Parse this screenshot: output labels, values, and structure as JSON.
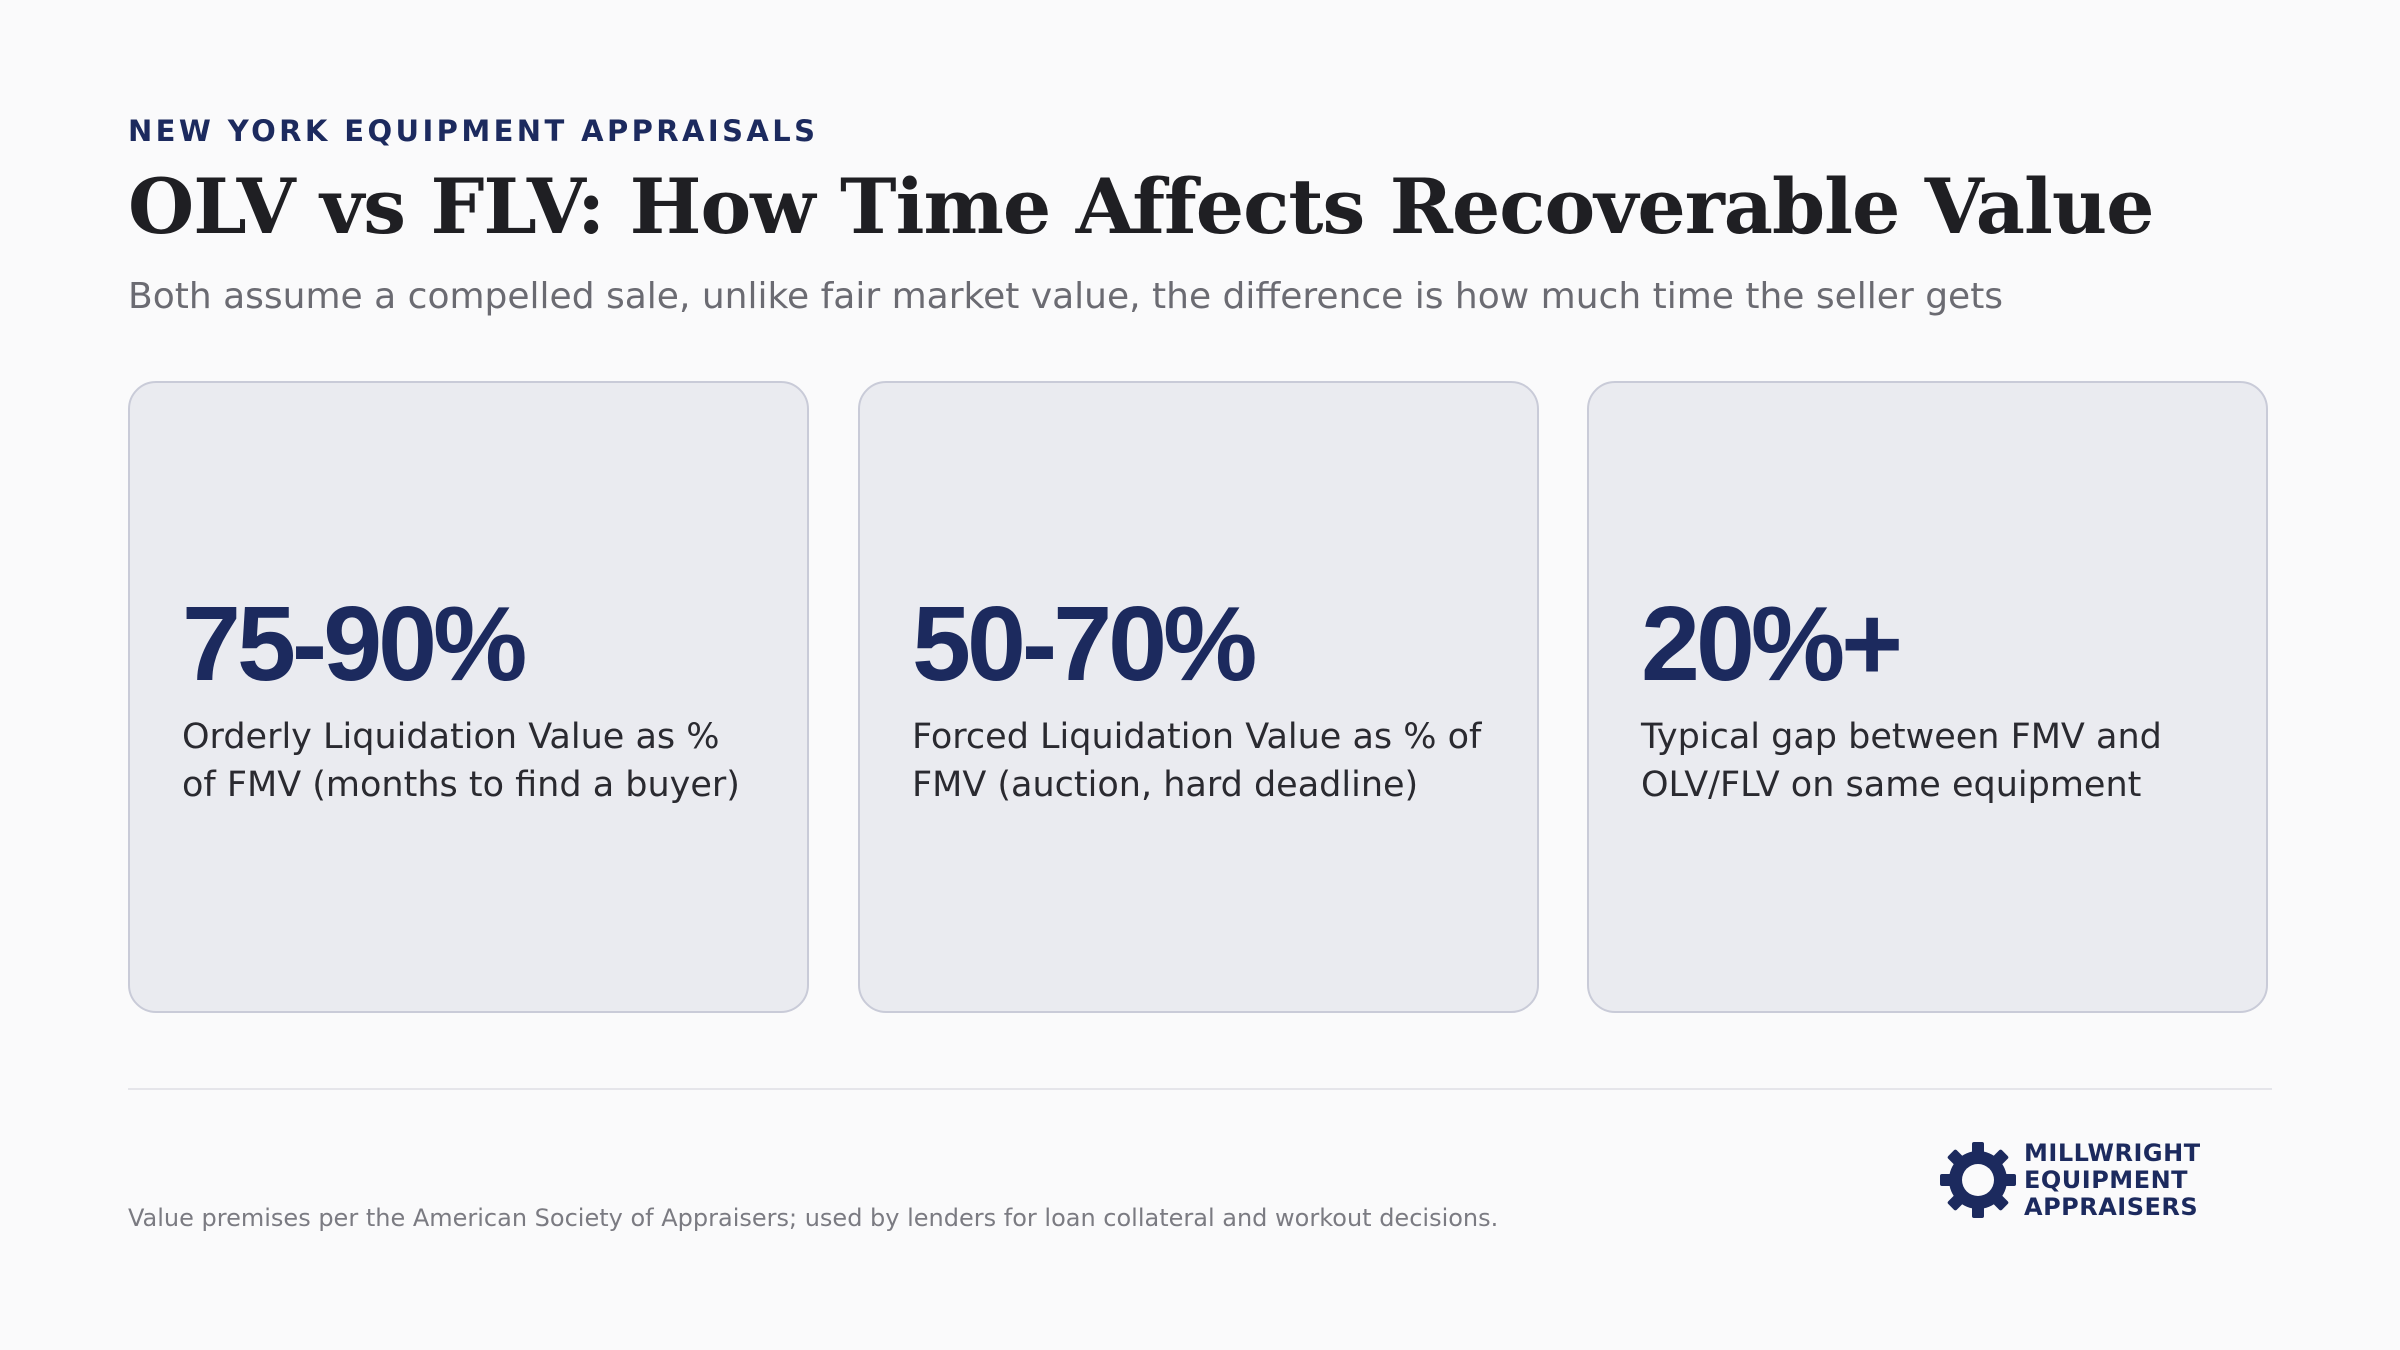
{
  "header": {
    "eyebrow": "NEW YORK EQUIPMENT APPRAISALS",
    "title": "OLV vs FLV: How Time Affects Recoverable Value",
    "subtitle": "Both assume a compelled sale, unlike fair market value, the difference is how much time the seller gets"
  },
  "cards": [
    {
      "stat": "75-90%",
      "description": "Orderly Liquidation Value as % of FMV (months to find a buyer)"
    },
    {
      "stat": "50-70%",
      "description": "Forced Liquidation Value as % of FMV (auction, hard deadline)"
    },
    {
      "stat": "20%+",
      "description": "Typical gap between FMV and OLV/FLV on same equipment"
    }
  ],
  "footer": {
    "note": "Value premises per the American Society of Appraisers; used by lenders for loan collateral and workout decisions.",
    "logo": {
      "icon": "gear-icon",
      "line1": "MILLWRIGHT",
      "line2": "EQUIPMENT",
      "line3": "APPRAISERS"
    }
  },
  "colors": {
    "accent": "#1c2a5e",
    "card_background": "#eaebf0",
    "card_border": "#c9cbd8",
    "page_background": "#fafafb"
  }
}
